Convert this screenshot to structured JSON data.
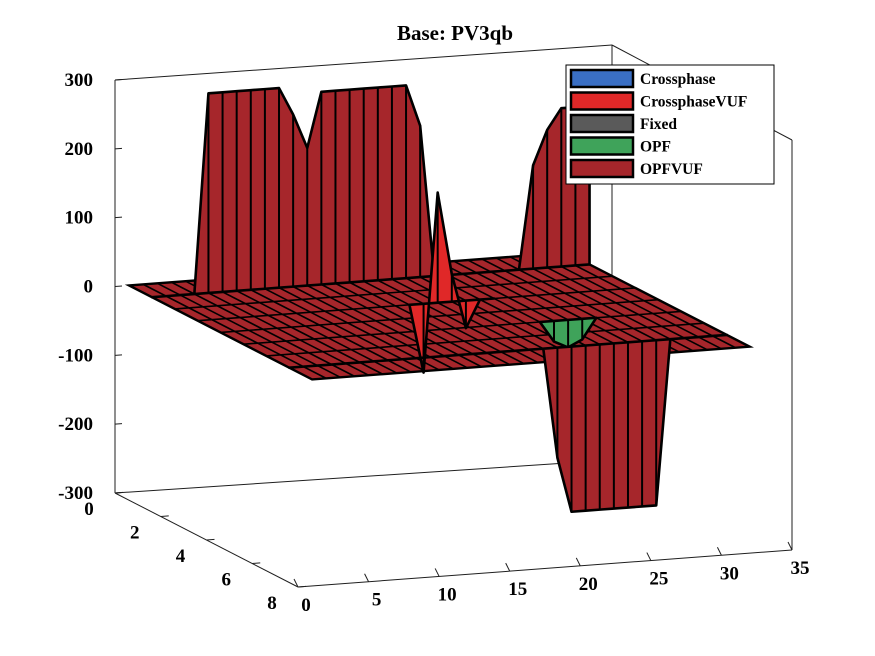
{
  "chart_data": {
    "type": "surface3d",
    "title": "Base: PV3qb",
    "xlabel": "",
    "ylabel": "",
    "zlabel": "",
    "xlim": [
      0,
      35
    ],
    "ylim": [
      0,
      8
    ],
    "zlim": [
      -300,
      300
    ],
    "x_ticks": [
      "0",
      "5",
      "10",
      "15",
      "20",
      "25",
      "30",
      "35"
    ],
    "y_ticks": [
      "0",
      "2",
      "4",
      "6",
      "8"
    ],
    "z_ticks": [
      "300",
      "200",
      "100",
      "0",
      "-100",
      "-200",
      "-300"
    ],
    "grid": false,
    "legend_position": "top-right",
    "legend": [
      {
        "label": "Crossphase",
        "color": "#3a6fc4"
      },
      {
        "label": "CrossphaseVUF",
        "color": "#e02828"
      },
      {
        "label": "Fixed",
        "color": "#5a5a5a"
      },
      {
        "label": "OPF",
        "color": "#3fa35a"
      },
      {
        "label": "OPFVUF",
        "color": "#a6262b"
      }
    ],
    "series": [
      {
        "name": "OPFVUF",
        "y": 7,
        "x": [
          1,
          2,
          3,
          4,
          5,
          6,
          7,
          8,
          9,
          10,
          11,
          12,
          13,
          14,
          15,
          16,
          17,
          18,
          19,
          20,
          21,
          22,
          23,
          24,
          25,
          26,
          27,
          28,
          29,
          30,
          31,
          32
        ],
        "values": [
          0,
          0,
          0,
          0,
          0,
          0,
          0,
          0,
          0,
          0,
          0,
          0,
          0,
          0,
          0,
          0,
          0,
          0,
          0,
          -160,
          -240,
          -240,
          -240,
          -240,
          -240,
          -240,
          -240,
          0,
          0,
          0,
          0,
          0
        ]
      },
      {
        "name": "OPFVUF",
        "y": 1,
        "x": [
          1,
          2,
          3,
          4,
          5,
          6,
          7,
          8,
          9,
          10,
          11,
          12,
          13,
          14,
          15,
          16,
          17,
          18,
          19,
          20,
          21,
          22,
          23,
          24,
          25,
          26,
          27,
          28,
          29,
          30,
          31,
          32
        ],
        "values": [
          0,
          0,
          0,
          0,
          290,
          290,
          290,
          290,
          290,
          290,
          250,
          200,
          280,
          280,
          280,
          280,
          280,
          280,
          280,
          220,
          0,
          0,
          0,
          0,
          0,
          0,
          0,
          150,
          200,
          230,
          230,
          230
        ]
      },
      {
        "name": "CrossphaseVUF",
        "y": 3,
        "x": [
          16,
          17,
          18,
          19,
          20,
          21,
          22
        ],
        "values": [
          0,
          -100,
          160,
          40,
          -40,
          0,
          0
        ]
      },
      {
        "name": "OPF",
        "y": 5,
        "x": [
          22,
          23,
          24,
          25,
          26
        ],
        "values": [
          0,
          -30,
          -40,
          -30,
          0
        ]
      }
    ]
  }
}
